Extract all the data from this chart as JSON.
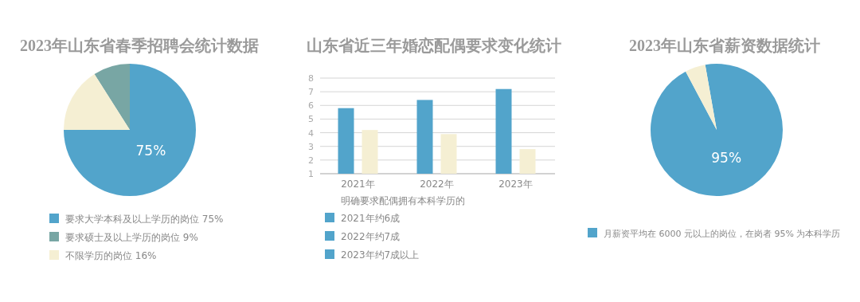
{
  "chart_data": [
    {
      "type": "pie",
      "title": "2023年山东省春季招聘会统计数据",
      "categories": [
        "要求大学本科及以上学历的岗位 75%",
        "要求硕士及以上学历的岗位 9%",
        "不限学历的岗位 16%"
      ],
      "values": [
        75,
        9,
        16
      ],
      "colors": [
        "#52a4cb",
        "#78a6a4",
        "#f5efd3"
      ],
      "value_labels": [
        "75%",
        null,
        null
      ],
      "legend": "bottom"
    },
    {
      "type": "bar",
      "title": "山东省近三年婚恋配偶要求变化统计",
      "categories": [
        "2021年",
        "2022年",
        "2023年"
      ],
      "series": [
        {
          "color": "#52a4cb",
          "values": [
            5.8,
            6.4,
            7.2
          ]
        },
        {
          "color": "#f5efd3",
          "values": [
            4.2,
            3.9,
            2.8
          ]
        }
      ],
      "ylim": [
        1,
        8
      ],
      "yticks": [
        1,
        2,
        3,
        4,
        5,
        6,
        7,
        8
      ],
      "grid": "y",
      "legend_title": "明确要求配偶拥有本科学历的",
      "annotations": [
        "2021年约6成",
        "2022年约7成",
        "2023年约7成以上"
      ]
    },
    {
      "type": "pie",
      "title": "2023年山东省薪资数据统计",
      "categories": [
        "月薪资平均在 6000 元以上的岗位，在岗者 95% 为本科学历",
        null
      ],
      "values": [
        95,
        5
      ],
      "colors": [
        "#52a4cb",
        "#f5efd3"
      ],
      "value_labels": [
        "95%",
        null
      ],
      "legend": "bottom"
    }
  ]
}
